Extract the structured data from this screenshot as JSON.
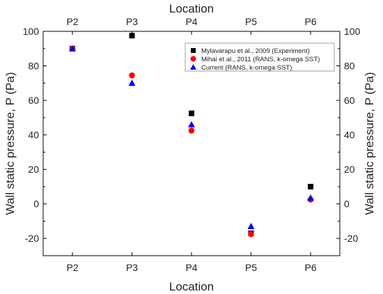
{
  "chart_data": {
    "type": "scatter",
    "categories": [
      "P2",
      "P3",
      "P4",
      "P5",
      "P6"
    ],
    "xlabel": "Location",
    "xlabel_top": "Location",
    "ylabel": "Wall static pressure, P (Pa)",
    "ylabel_right": "Wall static pressure, P (Pa)",
    "ylim": [
      -30,
      100
    ],
    "yticks": [
      -20,
      0,
      20,
      40,
      60,
      80,
      100
    ],
    "grid": false,
    "legend_position": "top-right",
    "series": [
      {
        "name": "Mylavarapu et al., 2009 (Experiment)",
        "marker": "square",
        "color": "#000000",
        "values": [
          90,
          97.5,
          52.5,
          -17,
          10
        ]
      },
      {
        "name": "Mihai et al., 2011 (RANS, k-omega SST)",
        "marker": "circle",
        "color": "#ff0000",
        "values": [
          90,
          74.5,
          42.5,
          -17.5,
          2.5
        ]
      },
      {
        "name": "Current (RANS, k-omega SST)",
        "marker": "triangle",
        "color": "#0000ff",
        "values": [
          90,
          70,
          46,
          -13,
          3.5
        ]
      }
    ]
  }
}
